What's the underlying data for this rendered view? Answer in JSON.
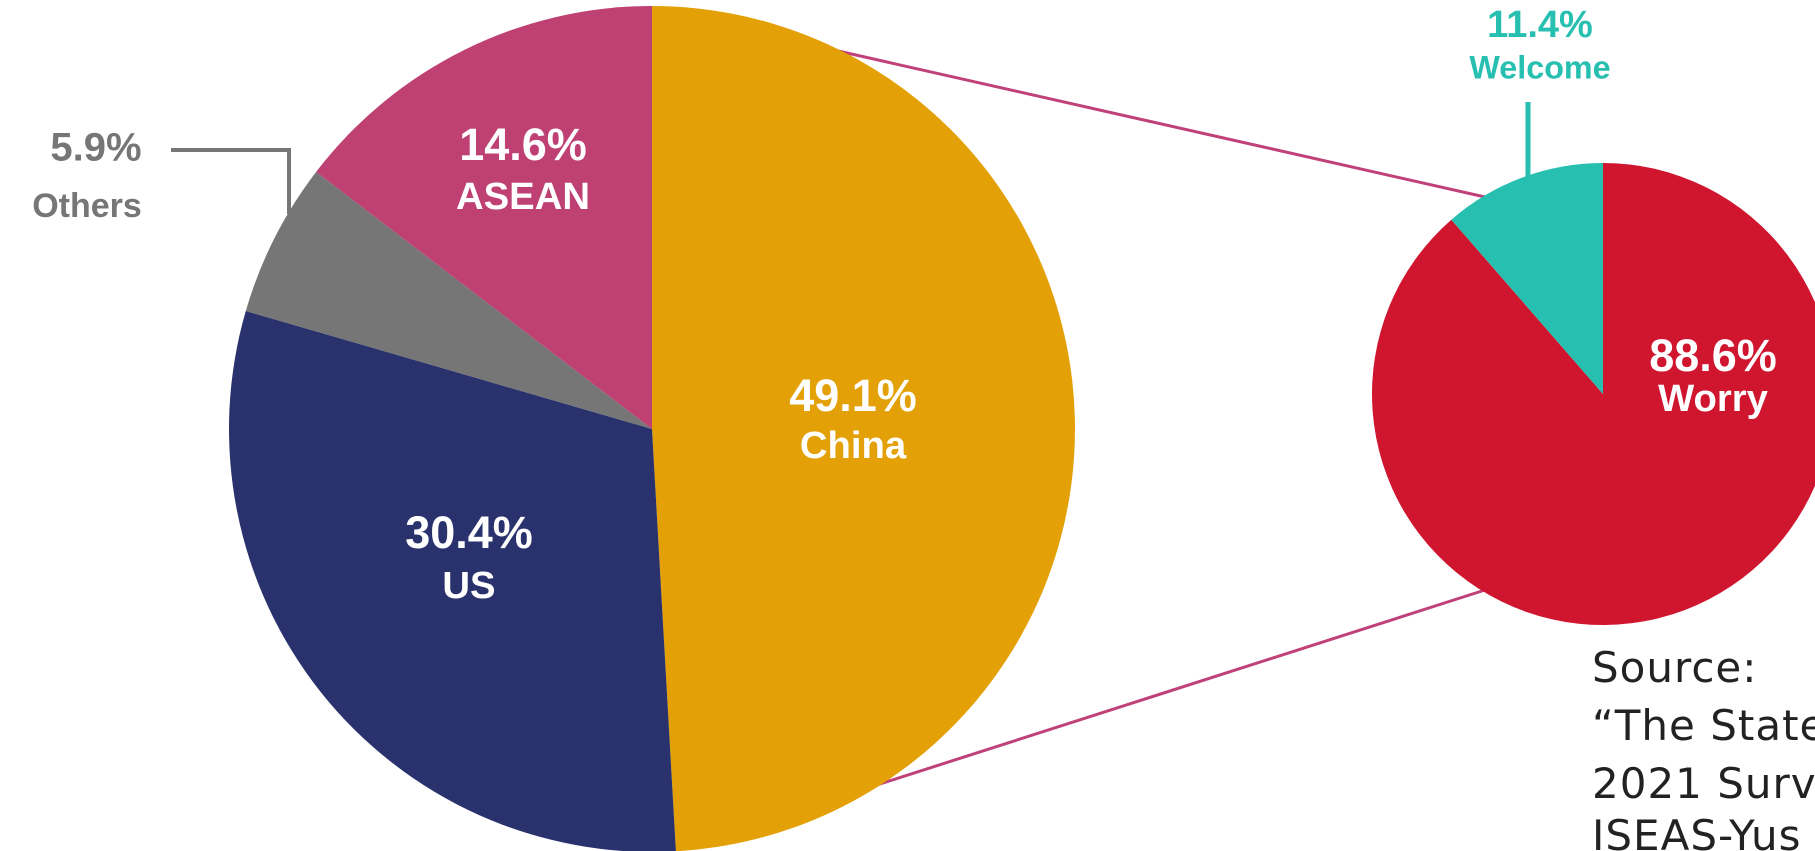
{
  "chart_data": [
    {
      "type": "pie",
      "categories": [
        "China",
        "US",
        "Others",
        "ASEAN"
      ],
      "values": [
        49.1,
        30.4,
        5.9,
        14.6
      ],
      "value_labels": [
        "49.1%",
        "30.4%",
        "5.9%",
        "14.6%"
      ],
      "colors": [
        "#e3a107",
        "#29326d",
        "#767676",
        "#bf4073"
      ]
    },
    {
      "type": "pie",
      "categories": [
        "Worry",
        "Welcome"
      ],
      "values": [
        88.6,
        11.4
      ],
      "value_labels": [
        "88.6%",
        "11.4%"
      ],
      "colors": [
        "#d0152f",
        "#26bfb0"
      ]
    }
  ],
  "source": {
    "lines": [
      "Source:",
      "“The State",
      "2021 Surv",
      "ISEAS-Yus"
    ]
  }
}
